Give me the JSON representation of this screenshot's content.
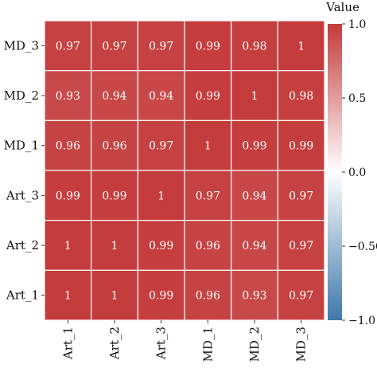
{
  "chart_data": {
    "type": "heatmap",
    "title": "",
    "xlabel": "",
    "ylabel": "",
    "x_categories": [
      "Art_1",
      "Art_2",
      "Art_3",
      "MD_1",
      "MD_2",
      "MD_3"
    ],
    "y_categories": [
      "MD_3",
      "MD_2",
      "MD_1",
      "Art_3",
      "Art_2",
      "Art_1"
    ],
    "values": [
      [
        0.97,
        0.97,
        0.97,
        0.99,
        0.98,
        1
      ],
      [
        0.93,
        0.94,
        0.94,
        0.99,
        1,
        0.98
      ],
      [
        0.96,
        0.96,
        0.97,
        1,
        0.99,
        0.99
      ],
      [
        0.99,
        0.99,
        1,
        0.97,
        0.94,
        0.97
      ],
      [
        1,
        1,
        0.99,
        0.96,
        0.94,
        0.97
      ],
      [
        1,
        1,
        0.99,
        0.96,
        0.93,
        0.97
      ]
    ],
    "value_labels": [
      [
        "0.97",
        "0.97",
        "0.97",
        "0.99",
        "0.98",
        "1"
      ],
      [
        "0.93",
        "0.94",
        "0.94",
        "0.99",
        "1",
        "0.98"
      ],
      [
        "0.96",
        "0.96",
        "0.97",
        "1",
        "0.99",
        "0.99"
      ],
      [
        "0.99",
        "0.99",
        "1",
        "0.97",
        "0.94",
        "0.97"
      ],
      [
        "1",
        "1",
        "0.99",
        "0.96",
        "0.94",
        "0.97"
      ],
      [
        "1",
        "1",
        "0.99",
        "0.96",
        "0.93",
        "0.97"
      ]
    ],
    "colorbar": {
      "title": "Value",
      "range": [
        -1.0,
        1.0
      ],
      "ticks": [
        1.0,
        0.5,
        0.0,
        -0.5,
        -1.0
      ],
      "tick_labels": [
        "1.0",
        "0.5",
        "0.0",
        "−0.50",
        "−1.0"
      ],
      "colors": {
        "high": "#c43b3b",
        "mid": "#ffffff",
        "low": "#3e78aa"
      }
    },
    "cell_text_color": "#ffffff",
    "cell_border_color": "#ffffff"
  }
}
